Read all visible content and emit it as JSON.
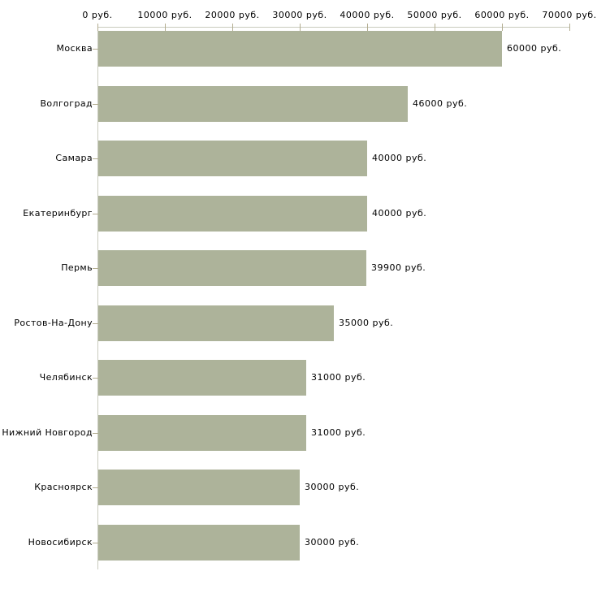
{
  "chart_data": {
    "type": "bar",
    "orientation": "horizontal",
    "title": "",
    "xlabel": "",
    "ylabel": "",
    "xlim": [
      0,
      70000
    ],
    "x_ticks": [
      0,
      10000,
      20000,
      30000,
      40000,
      50000,
      60000,
      70000
    ],
    "x_tick_labels": [
      "0 руб.",
      "10000 руб.",
      "20000 руб.",
      "30000 руб.",
      "40000 руб.",
      "50000 руб.",
      "60000 руб.",
      "70000 руб."
    ],
    "categories": [
      "Москва",
      "Волгоград",
      "Самара",
      "Екатеринбург",
      "Пермь",
      "Ростов-На-Дону",
      "Челябинск",
      "Нижний Новгород",
      "Красноярск",
      "Новосибирск"
    ],
    "values": [
      60000,
      46000,
      40000,
      40000,
      39900,
      35000,
      31000,
      31000,
      30000,
      30000
    ],
    "value_labels": [
      "60000 руб.",
      "46000 руб.",
      "40000 руб.",
      "40000 руб.",
      "39900 руб.",
      "35000 руб.",
      "31000 руб.",
      "31000 руб.",
      "30000 руб.",
      "30000 руб."
    ],
    "grid": false,
    "legend": null,
    "colors": {
      "bar": "#adb39a",
      "axis": "#c9cabd",
      "tick": "#b2ac90",
      "text": "#000000",
      "background": "#ffffff"
    }
  }
}
